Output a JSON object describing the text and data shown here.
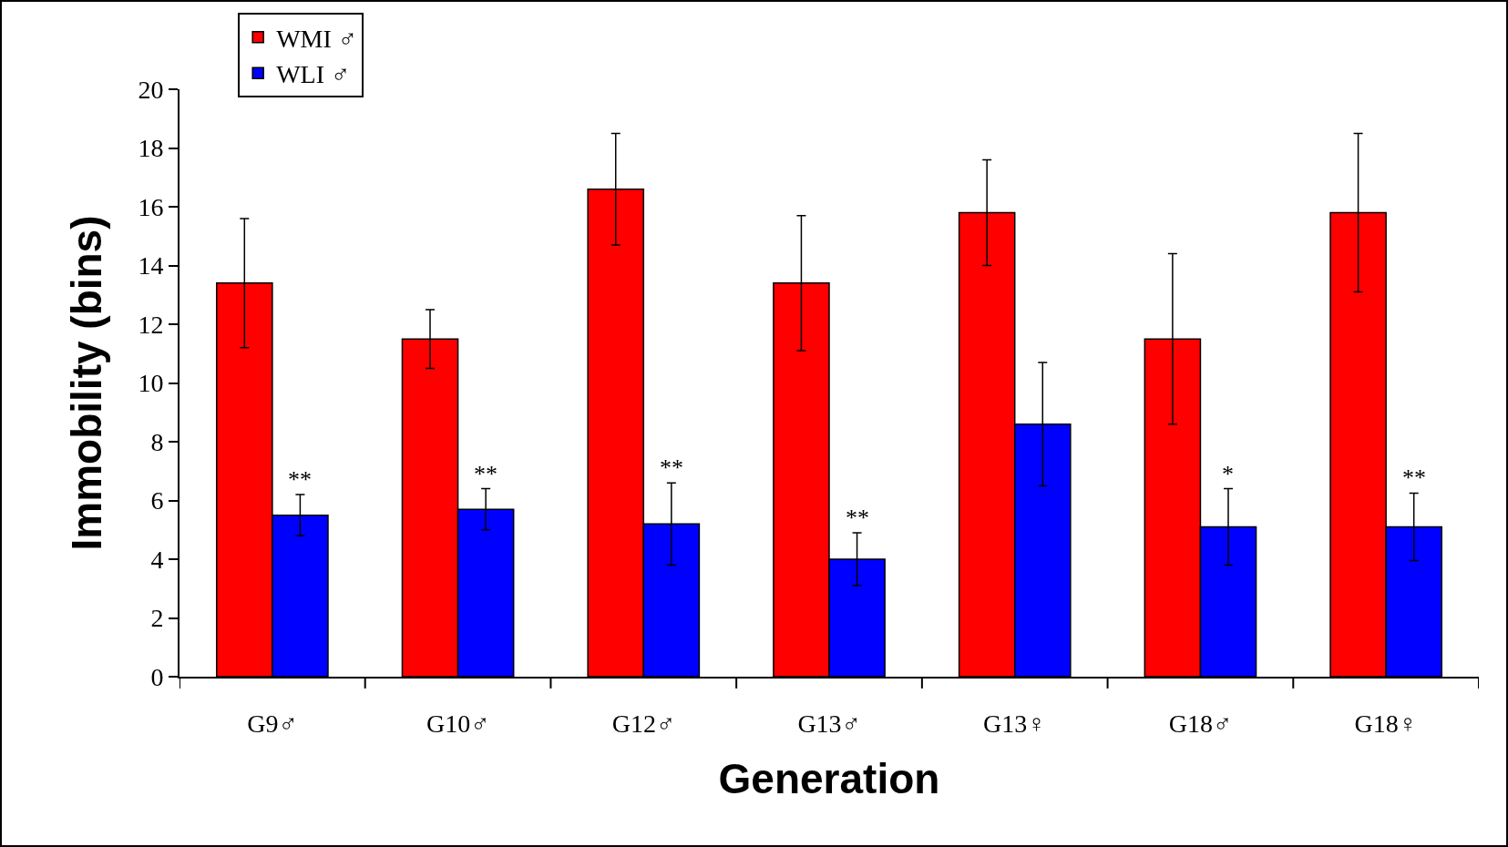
{
  "chart_data": {
    "type": "bar",
    "xlabel": "Generation",
    "ylabel": "Immobility (bins)",
    "categories": [
      "G9♂",
      "G10♂",
      "G12♂",
      "G13♂",
      "G13♀",
      "G18♂",
      "G18♀"
    ],
    "series": [
      {
        "name": "WMI ♂",
        "color": "#ff0000",
        "values": [
          13.4,
          11.5,
          16.6,
          13.4,
          15.8,
          11.5,
          15.8
        ],
        "errors": [
          2.2,
          1.0,
          1.9,
          2.3,
          1.8,
          2.9,
          2.7
        ]
      },
      {
        "name": "WLI ♂",
        "color": "#0000ff",
        "values": [
          5.5,
          5.7,
          5.2,
          4.0,
          8.6,
          5.1,
          5.1
        ],
        "errors": [
          0.7,
          0.7,
          1.4,
          0.9,
          2.1,
          1.3,
          1.15
        ]
      }
    ],
    "ylim": [
      0,
      20
    ],
    "yticks": [
      0,
      2,
      4,
      6,
      8,
      10,
      12,
      14,
      16,
      18,
      20
    ],
    "grid": false,
    "legend": "top left",
    "annotations": [
      {
        "text": "**",
        "x": "G9♂",
        "y": 6.2
      },
      {
        "text": "**",
        "x": "G10♂",
        "y": 6.4
      },
      {
        "text": "**",
        "x": "G12♂",
        "y": 6.6
      },
      {
        "text": "**",
        "x": "G13♂",
        "y": 4.9
      },
      {
        "text": "*",
        "x": "G18♂",
        "y": 6.4
      },
      {
        "text": "**",
        "x": "G18♀",
        "y": 6.25
      }
    ]
  }
}
